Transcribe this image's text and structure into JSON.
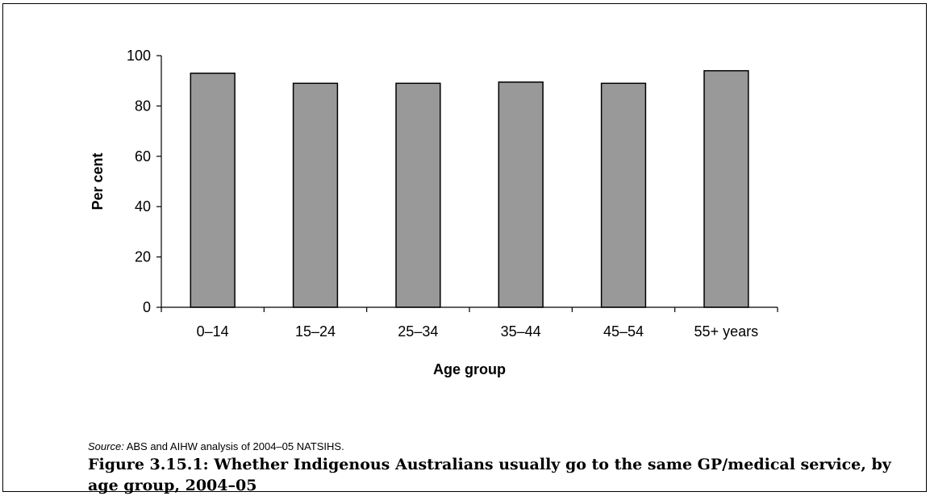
{
  "chart_data": {
    "type": "bar",
    "categories": [
      "0–14",
      "15–24",
      "25–34",
      "35–44",
      "45–54",
      "55+ years"
    ],
    "values": [
      93,
      89,
      89,
      89.5,
      89,
      94
    ],
    "xlabel": "Age group",
    "ylabel": "Per cent",
    "ylim": [
      0,
      100
    ],
    "yticks": [
      0,
      20,
      40,
      60,
      80,
      100
    ],
    "grid": false,
    "colors": {
      "bar_fill": "#999999",
      "bar_stroke": "#000000"
    }
  },
  "source": {
    "label": "Source:",
    "text": " ABS and AIHW analysis of 2004–05 NATSIHS."
  },
  "caption": "Figure 3.15.1: Whether Indigenous Australians usually go to the same GP/medical service, by age group, 2004–05"
}
